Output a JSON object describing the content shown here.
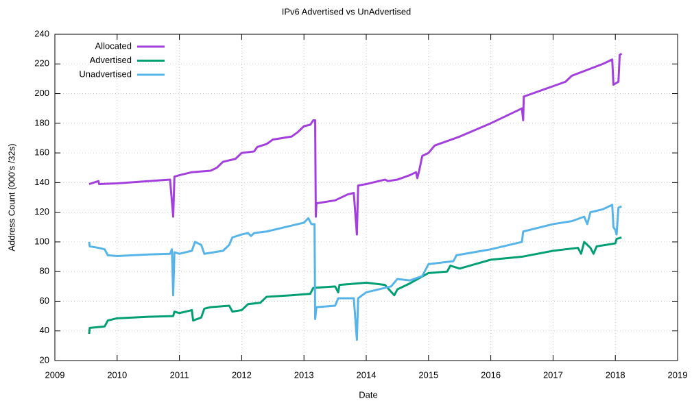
{
  "chart_data": {
    "type": "line",
    "title": "IPv6 Advertised vs UnAdvertised",
    "x_label": "Date",
    "y_label": "Address Count (000's /32s)",
    "xlim": [
      2009,
      2019
    ],
    "xticks": [
      2009,
      2010,
      2011,
      2012,
      2013,
      2014,
      2015,
      2016,
      2017,
      2018,
      2019
    ],
    "ylim": [
      20,
      240
    ],
    "yticks": [
      20,
      40,
      60,
      80,
      100,
      120,
      140,
      160,
      180,
      200,
      220,
      240
    ],
    "grid": true,
    "legend": "top-left",
    "series": [
      {
        "name": "Allocated",
        "color": "#a33fdc",
        "x": [
          2009.55,
          2009.7,
          2009.71,
          2010.0,
          2010.5,
          2010.85,
          2010.9,
          2010.92,
          2011.0,
          2011.2,
          2011.5,
          2011.6,
          2011.7,
          2011.9,
          2012.0,
          2012.2,
          2012.25,
          2012.4,
          2012.5,
          2012.8,
          2012.9,
          2013.0,
          2013.1,
          2013.15,
          2013.18,
          2013.19,
          2013.2,
          2013.5,
          2013.7,
          2013.8,
          2013.85,
          2013.87,
          2014.0,
          2014.3,
          2014.35,
          2014.5,
          2014.7,
          2014.8,
          2014.82,
          2014.85,
          2014.9,
          2015.0,
          2015.1,
          2015.5,
          2016.0,
          2016.5,
          2016.52,
          2016.53,
          2017.0,
          2017.2,
          2017.3,
          2017.8,
          2017.95,
          2017.97,
          2018.05,
          2018.07,
          2018.1
        ],
        "values": [
          139,
          141,
          139,
          139.5,
          141,
          142,
          117,
          144,
          145,
          147,
          148,
          150,
          154,
          156,
          160,
          161,
          164,
          166,
          169,
          171,
          174,
          178,
          179,
          182,
          182,
          117,
          126,
          128,
          132,
          133,
          105,
          138,
          139,
          142,
          141,
          142,
          145,
          147,
          143,
          148,
          158,
          160,
          165,
          171,
          180,
          190,
          182,
          198,
          205,
          208,
          212,
          220,
          223,
          206,
          208,
          226,
          227
        ]
      },
      {
        "name": "Advertised",
        "color": "#009e73",
        "x": [
          2009.55,
          2009.56,
          2009.8,
          2009.85,
          2010.0,
          2010.5,
          2010.9,
          2010.92,
          2011.0,
          2011.2,
          2011.22,
          2011.35,
          2011.4,
          2011.5,
          2011.8,
          2011.85,
          2012.0,
          2012.1,
          2012.3,
          2012.4,
          2012.8,
          2013.1,
          2013.15,
          2013.5,
          2013.55,
          2013.57,
          2014.0,
          2014.3,
          2014.45,
          2014.5,
          2014.7,
          2015.0,
          2015.3,
          2015.35,
          2015.5,
          2016.0,
          2016.5,
          2017.0,
          2017.4,
          2017.45,
          2017.5,
          2017.6,
          2017.65,
          2017.7,
          2018.0,
          2018.02,
          2018.1
        ],
        "values": [
          38,
          42,
          43,
          47,
          48.5,
          49.5,
          50,
          53,
          52,
          54,
          47,
          49,
          55,
          56,
          57,
          53,
          54,
          58,
          59,
          63,
          64,
          65,
          69,
          70,
          66,
          71,
          72.5,
          71,
          64,
          68,
          72,
          79,
          80,
          84,
          82,
          88,
          90,
          94,
          96,
          92,
          100,
          96,
          92,
          97,
          99,
          102,
          103
        ]
      },
      {
        "name": "Unadvertised",
        "color": "#56b4e9",
        "x": [
          2009.55,
          2009.56,
          2009.7,
          2009.8,
          2009.85,
          2010.0,
          2010.5,
          2010.85,
          2010.88,
          2010.9,
          2010.92,
          2011.0,
          2011.2,
          2011.25,
          2011.35,
          2011.4,
          2011.7,
          2011.8,
          2011.85,
          2012.0,
          2012.1,
          2012.15,
          2012.2,
          2012.4,
          2012.7,
          2013.0,
          2013.07,
          2013.12,
          2013.17,
          2013.18,
          2013.2,
          2013.5,
          2013.55,
          2013.8,
          2013.85,
          2013.87,
          2014.0,
          2014.4,
          2014.5,
          2014.7,
          2014.9,
          2015.0,
          2015.4,
          2015.45,
          2016.0,
          2016.5,
          2016.52,
          2017.0,
          2017.3,
          2017.5,
          2017.55,
          2017.6,
          2017.8,
          2017.95,
          2017.97,
          2018.0,
          2018.02,
          2018.05,
          2018.1
        ],
        "values": [
          100,
          97,
          96,
          95,
          91,
          90.5,
          91.5,
          92,
          95,
          64,
          93,
          92,
          94,
          100,
          98,
          92,
          94,
          98,
          103,
          105,
          106,
          104,
          106,
          107,
          110,
          113,
          116,
          112,
          112,
          48,
          56,
          57,
          62,
          62,
          34,
          62,
          66,
          70,
          75,
          74,
          77,
          85,
          87,
          91,
          95,
          100,
          107,
          112,
          114,
          117,
          112,
          120,
          122,
          125,
          110,
          108,
          105,
          123,
          124
        ]
      }
    ]
  }
}
